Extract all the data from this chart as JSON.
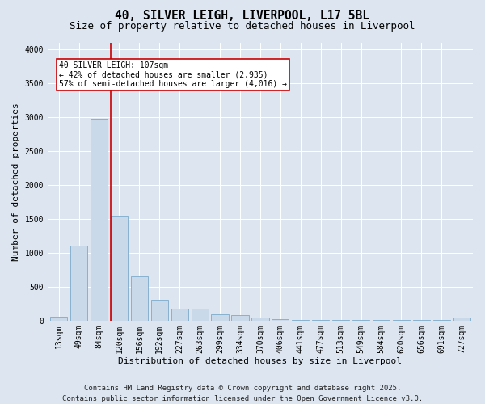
{
  "title": "40, SILVER LEIGH, LIVERPOOL, L17 5BL",
  "subtitle": "Size of property relative to detached houses in Liverpool",
  "xlabel": "Distribution of detached houses by size in Liverpool",
  "ylabel": "Number of detached properties",
  "categories": [
    "13sqm",
    "49sqm",
    "84sqm",
    "120sqm",
    "156sqm",
    "192sqm",
    "227sqm",
    "263sqm",
    "299sqm",
    "334sqm",
    "370sqm",
    "406sqm",
    "441sqm",
    "477sqm",
    "513sqm",
    "549sqm",
    "584sqm",
    "620sqm",
    "656sqm",
    "691sqm",
    "727sqm"
  ],
  "values": [
    55,
    1100,
    2970,
    1540,
    650,
    310,
    175,
    175,
    90,
    80,
    40,
    20,
    15,
    10,
    5,
    5,
    5,
    5,
    5,
    5,
    40
  ],
  "bar_color": "#c9d9ea",
  "bar_edge_color": "#7aaac8",
  "vline_color": "#cc0000",
  "annotation_text": "40 SILVER LEIGH: 107sqm\n← 42% of detached houses are smaller (2,935)\n57% of semi-detached houses are larger (4,016) →",
  "annotation_box_color": "#cc0000",
  "ylim": [
    0,
    4100
  ],
  "yticks": [
    0,
    500,
    1000,
    1500,
    2000,
    2500,
    3000,
    3500,
    4000
  ],
  "footer": "Contains HM Land Registry data © Crown copyright and database right 2025.\nContains public sector information licensed under the Open Government Licence v3.0.",
  "bg_color": "#dde6f0",
  "plot_bg_color": "#dde6f0",
  "title_fontsize": 10.5,
  "subtitle_fontsize": 9,
  "axis_label_fontsize": 8,
  "tick_fontsize": 7,
  "footer_fontsize": 6.5,
  "annotation_fontsize": 7
}
